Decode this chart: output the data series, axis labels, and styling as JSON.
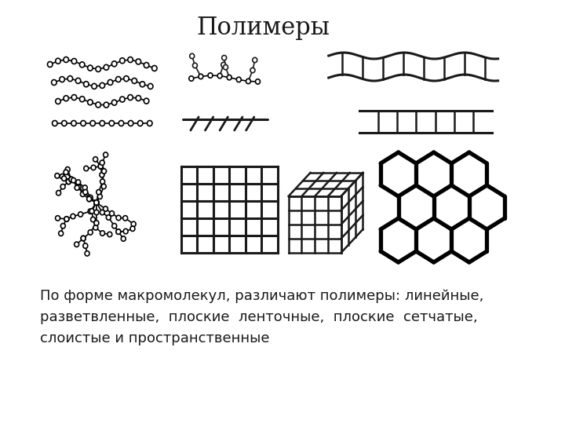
{
  "title": "Полимеры",
  "title_fontsize": 22,
  "description": "По форме макромолекул, различают полимеры: линейные,\nразветвленные,  плоские  ленточные,  плоские  сетчатые,\nслоистые и пространственные",
  "description_fontsize": 13,
  "bg_color": "#ffffff",
  "line_color": "#1a1a1a"
}
